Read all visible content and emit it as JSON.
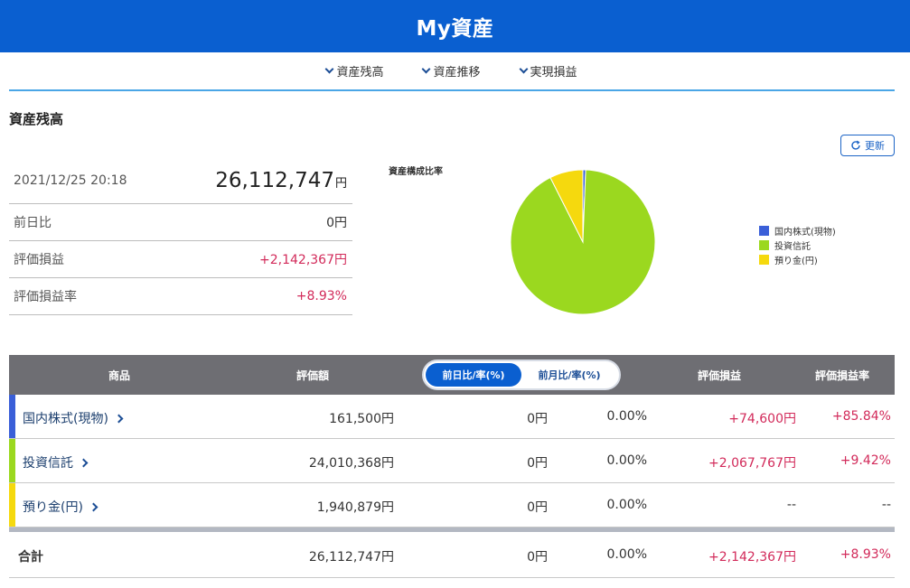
{
  "header": {
    "title": "My資産"
  },
  "nav": [
    {
      "label": "資産残高"
    },
    {
      "label": "資産推移"
    },
    {
      "label": "実現損益"
    }
  ],
  "section": {
    "title": "資産残高"
  },
  "refresh": {
    "label": "更新"
  },
  "summary": {
    "datetime": "2021/12/25 20:18",
    "total_value": "26,112,747",
    "total_unit": "円",
    "rows": [
      {
        "label": "前日比",
        "value": "0円"
      },
      {
        "label": "評価損益",
        "value": "+2,142,367円"
      },
      {
        "label": "評価損益率",
        "value": "+8.93%"
      }
    ]
  },
  "chart_data": {
    "type": "pie",
    "title": "資産構成比率",
    "categories": [
      "国内株式(現物)",
      "投資信託",
      "預り金(円)"
    ],
    "values": [
      161500,
      24010368,
      1940879
    ],
    "colors": [
      "#3a5fd8",
      "#9bd81f",
      "#f5d90e"
    ],
    "legend_position": "right"
  },
  "table": {
    "headers": {
      "product": "商品",
      "valuation": "評価額",
      "toggle_daily": "前日比/率(%)",
      "toggle_monthly": "前月比/率(%)",
      "pl": "評価損益",
      "pl_rate": "評価損益率"
    },
    "rows": [
      {
        "name": "国内株式(現物)",
        "color": "#3a5fd8",
        "valuation": "161,500円",
        "change": "0円",
        "change_rate": "0.00%",
        "pl": "+74,600円",
        "pl_rate": "+85.84%"
      },
      {
        "name": "投資信託",
        "color": "#9bd81f",
        "valuation": "24,010,368円",
        "change": "0円",
        "change_rate": "0.00%",
        "pl": "+2,067,767円",
        "pl_rate": "+9.42%"
      },
      {
        "name": "預り金(円)",
        "color": "#f5d90e",
        "valuation": "1,940,879円",
        "change": "0円",
        "change_rate": "0.00%",
        "pl": "--",
        "pl_rate": "--"
      }
    ],
    "total": {
      "label": "合計",
      "valuation": "26,112,747円",
      "change": "0円",
      "change_rate": "0.00%",
      "pl": "+2,142,367円",
      "pl_rate": "+8.93%"
    }
  }
}
